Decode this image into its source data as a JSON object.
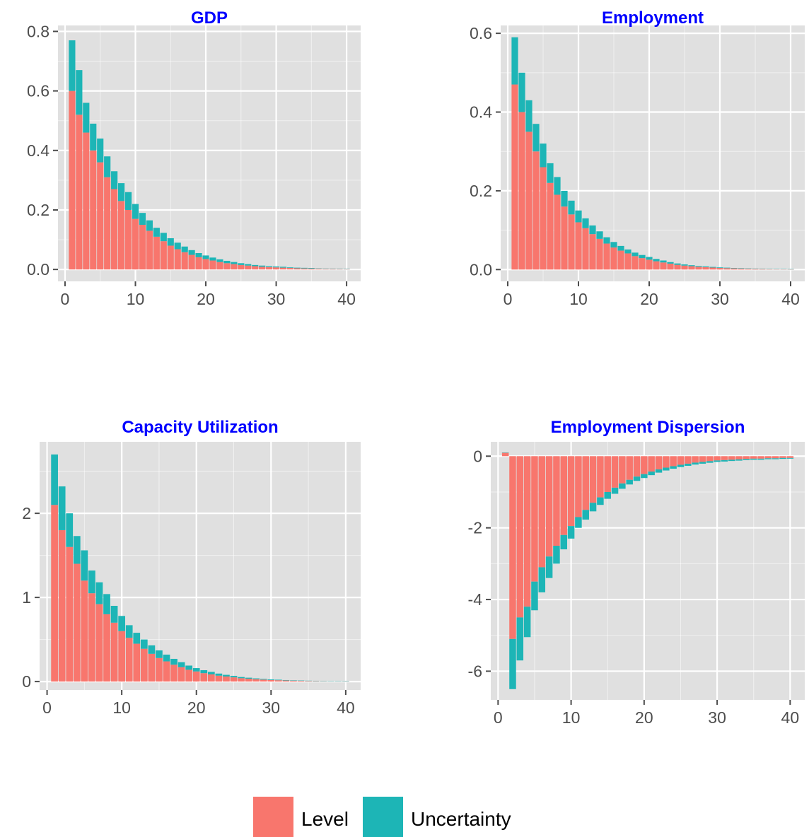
{
  "colors": {
    "level": "#F8766D",
    "uncertainty": "#1DB5B6",
    "panel_bg": "#E0E0E0",
    "grid": "#FFFFFF",
    "title": "#0000FF"
  },
  "legend": {
    "position": "bottom",
    "items": [
      {
        "label": "Level",
        "color": "#F8766D"
      },
      {
        "label": "Uncertainty",
        "color": "#1DB5B6"
      }
    ]
  },
  "chart_data": [
    {
      "type": "bar",
      "title": "GDP",
      "stacked": true,
      "xlim": [
        -1,
        42
      ],
      "ylim": [
        -0.04,
        0.82
      ],
      "xticks": [
        0,
        10,
        20,
        30,
        40
      ],
      "yticks": [
        0.0,
        0.2,
        0.4,
        0.6,
        0.8
      ],
      "ytick_labels": [
        "0.0",
        "0.2",
        "0.4",
        "0.6",
        "0.8"
      ],
      "x": [
        1,
        2,
        3,
        4,
        5,
        6,
        7,
        8,
        9,
        10,
        11,
        12,
        13,
        14,
        15,
        16,
        17,
        18,
        19,
        20,
        21,
        22,
        23,
        24,
        25,
        26,
        27,
        28,
        29,
        30,
        31,
        32,
        33,
        34,
        35,
        36,
        37,
        38,
        39,
        40
      ],
      "series": [
        {
          "name": "Level",
          "values": [
            0.6,
            0.52,
            0.46,
            0.4,
            0.36,
            0.31,
            0.27,
            0.23,
            0.2,
            0.17,
            0.15,
            0.13,
            0.11,
            0.095,
            0.08,
            0.068,
            0.058,
            0.049,
            0.041,
            0.035,
            0.03,
            0.025,
            0.021,
            0.018,
            0.015,
            0.013,
            0.011,
            0.009,
            0.008,
            0.007,
            0.006,
            0.005,
            0.004,
            0.0035,
            0.003,
            0.0025,
            0.002,
            0.0018,
            0.0015,
            0.0013
          ]
        },
        {
          "name": "Uncertainty",
          "values": [
            0.17,
            0.15,
            0.1,
            0.09,
            0.08,
            0.07,
            0.06,
            0.06,
            0.06,
            0.05,
            0.04,
            0.035,
            0.03,
            0.028,
            0.025,
            0.022,
            0.019,
            0.016,
            0.014,
            0.012,
            0.01,
            0.009,
            0.008,
            0.007,
            0.006,
            0.005,
            0.004,
            0.004,
            0.003,
            0.003,
            0.003,
            0.002,
            0.002,
            0.002,
            0.002,
            0.001,
            0.001,
            0.001,
            0.001,
            0.001
          ]
        }
      ]
    },
    {
      "type": "bar",
      "title": "Employment",
      "stacked": true,
      "xlim": [
        -1,
        42
      ],
      "ylim": [
        -0.03,
        0.62
      ],
      "xticks": [
        0,
        10,
        20,
        30,
        40
      ],
      "yticks": [
        0.0,
        0.2,
        0.4,
        0.6
      ],
      "ytick_labels": [
        "0.0",
        "0.2",
        "0.4",
        "0.6"
      ],
      "x": [
        1,
        2,
        3,
        4,
        5,
        6,
        7,
        8,
        9,
        10,
        11,
        12,
        13,
        14,
        15,
        16,
        17,
        18,
        19,
        20,
        21,
        22,
        23,
        24,
        25,
        26,
        27,
        28,
        29,
        30,
        31,
        32,
        33,
        34,
        35,
        36,
        37,
        38,
        39,
        40
      ],
      "series": [
        {
          "name": "Level",
          "values": [
            0.47,
            0.4,
            0.35,
            0.3,
            0.26,
            0.22,
            0.19,
            0.16,
            0.14,
            0.12,
            0.105,
            0.09,
            0.078,
            0.066,
            0.056,
            0.048,
            0.041,
            0.034,
            0.029,
            0.025,
            0.021,
            0.018,
            0.015,
            0.012,
            0.01,
            0.0085,
            0.007,
            0.006,
            0.005,
            0.004,
            0.0035,
            0.003,
            0.0025,
            0.002,
            0.0017,
            0.0014,
            0.0012,
            0.001,
            0.0009,
            0.0008
          ]
        },
        {
          "name": "Uncertainty",
          "values": [
            0.12,
            0.1,
            0.08,
            0.07,
            0.06,
            0.05,
            0.045,
            0.04,
            0.035,
            0.03,
            0.025,
            0.022,
            0.019,
            0.016,
            0.014,
            0.012,
            0.01,
            0.009,
            0.008,
            0.007,
            0.006,
            0.005,
            0.004,
            0.0035,
            0.003,
            0.0025,
            0.002,
            0.002,
            0.0017,
            0.0015,
            0.0013,
            0.0011,
            0.001,
            0.0009,
            0.0008,
            0.0007,
            0.0006,
            0.0005,
            0.0005,
            0.0004
          ]
        }
      ]
    },
    {
      "type": "bar",
      "title": "Capacity Utilization",
      "stacked": true,
      "xlim": [
        -1,
        42
      ],
      "ylim": [
        -0.1,
        2.85
      ],
      "xticks": [
        0,
        10,
        20,
        30,
        40
      ],
      "yticks": [
        0,
        1,
        2
      ],
      "ytick_labels": [
        "0",
        "1",
        "2"
      ],
      "x": [
        1,
        2,
        3,
        4,
        5,
        6,
        7,
        8,
        9,
        10,
        11,
        12,
        13,
        14,
        15,
        16,
        17,
        18,
        19,
        20,
        21,
        22,
        23,
        24,
        25,
        26,
        27,
        28,
        29,
        30,
        31,
        32,
        33,
        34,
        35,
        36,
        37,
        38,
        39,
        40
      ],
      "series": [
        {
          "name": "Level",
          "values": [
            2.1,
            1.8,
            1.6,
            1.4,
            1.2,
            1.05,
            0.92,
            0.8,
            0.7,
            0.6,
            0.52,
            0.45,
            0.39,
            0.33,
            0.28,
            0.24,
            0.2,
            0.17,
            0.14,
            0.12,
            0.1,
            0.085,
            0.07,
            0.06,
            0.05,
            0.04,
            0.034,
            0.028,
            0.023,
            0.019,
            0.016,
            0.013,
            0.011,
            0.009,
            0.0075,
            0.006,
            0.005,
            0.004,
            0.0035,
            0.003
          ]
        },
        {
          "name": "Uncertainty",
          "values": [
            0.6,
            0.52,
            0.4,
            0.33,
            0.36,
            0.27,
            0.26,
            0.24,
            0.2,
            0.18,
            0.15,
            0.13,
            0.11,
            0.1,
            0.09,
            0.08,
            0.07,
            0.06,
            0.05,
            0.04,
            0.035,
            0.03,
            0.025,
            0.02,
            0.017,
            0.014,
            0.012,
            0.01,
            0.008,
            0.007,
            0.006,
            0.005,
            0.004,
            0.0035,
            0.003,
            0.0025,
            0.002,
            0.0018,
            0.0015,
            0.0012
          ]
        }
      ]
    },
    {
      "type": "bar",
      "title": "Employment Dispersion",
      "stacked": true,
      "xlim": [
        -1,
        42
      ],
      "ylim": [
        -6.8,
        0.4
      ],
      "xticks": [
        0,
        10,
        20,
        30,
        40
      ],
      "yticks": [
        0,
        -2,
        -4,
        -6
      ],
      "ytick_labels": [
        "0",
        "-2",
        "-4",
        "-6"
      ],
      "x": [
        1,
        2,
        3,
        4,
        5,
        6,
        7,
        8,
        9,
        10,
        11,
        12,
        13,
        14,
        15,
        16,
        17,
        18,
        19,
        20,
        21,
        22,
        23,
        24,
        25,
        26,
        27,
        28,
        29,
        30,
        31,
        32,
        33,
        34,
        35,
        36,
        37,
        38,
        39,
        40
      ],
      "series": [
        {
          "name": "Level",
          "values": [
            0.1,
            -5.1,
            -4.5,
            -4.2,
            -3.5,
            -3.1,
            -2.8,
            -2.5,
            -2.2,
            -1.95,
            -1.7,
            -1.5,
            -1.3,
            -1.15,
            -1.0,
            -0.88,
            -0.76,
            -0.66,
            -0.57,
            -0.5,
            -0.43,
            -0.37,
            -0.32,
            -0.28,
            -0.24,
            -0.21,
            -0.18,
            -0.16,
            -0.14,
            -0.12,
            -0.11,
            -0.1,
            -0.09,
            -0.08,
            -0.07,
            -0.07,
            -0.06,
            -0.06,
            -0.05,
            -0.05
          ]
        },
        {
          "name": "Uncertainty",
          "values": [
            0.0,
            -1.4,
            -1.2,
            -0.85,
            -0.8,
            -0.7,
            -0.6,
            -0.5,
            -0.4,
            -0.35,
            -0.3,
            -0.27,
            -0.24,
            -0.21,
            -0.19,
            -0.17,
            -0.15,
            -0.13,
            -0.12,
            -0.11,
            -0.1,
            -0.09,
            -0.08,
            -0.07,
            -0.065,
            -0.06,
            -0.055,
            -0.05,
            -0.045,
            -0.04,
            -0.04,
            -0.035,
            -0.035,
            -0.03,
            -0.03,
            -0.03,
            -0.025,
            -0.025,
            -0.025,
            -0.02
          ]
        }
      ]
    }
  ]
}
